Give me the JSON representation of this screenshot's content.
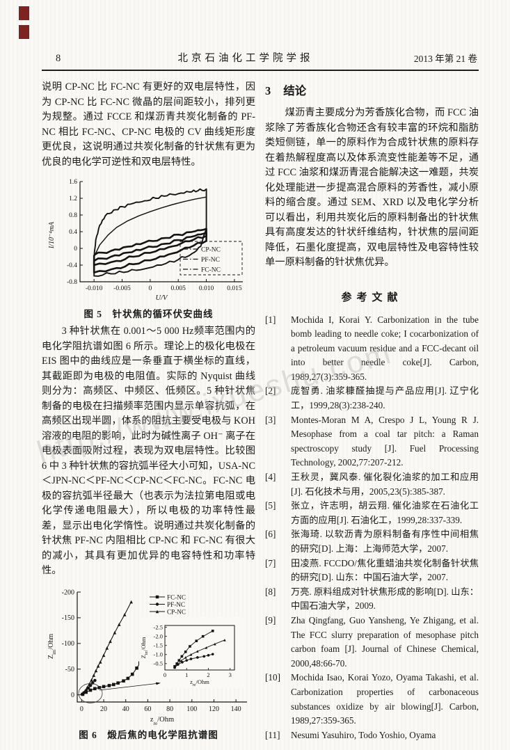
{
  "page": {
    "number": "8",
    "journal": "北京石油化工学院学报",
    "issue": "2013 年第 21 卷"
  },
  "watermark": {
    "text": "http://www.ixueshu.com"
  },
  "left_column": {
    "para1": "说明 CP-NC 比 FC-NC 有更好的双电层特性，因为 CP-NC 比 FC-NC 微晶的层间距较小，排列更为规整。通过 FCCE 和煤沥青共炭化制备的 PF-NC 相比 FC-NC、CP-NC 电极的 CV 曲线矩形度更优良，这说明通过共炭化制备的针状焦有更为优良的电化学可逆性和双电层特性。",
    "para2": "3 种针状焦在 0.001～5 000 Hz频率范围内的电化学阻抗谱如图 6 所示。理论上的极化电极在 EIS 图中的曲线应是一条垂直于横坐标的直线，其截距即为电极的电阻值。实际的 Nyquist 曲线则分为：高频区、中频区、低频区。5 种针状焦制备的电极在扫描频率范围内显示单容抗弧，在高频区出现半圆，体系的阻抗主要受电极与 KOH 溶液的电阻的影响，此时为碱性离子 OH⁻ 离子在电极表面吸附过程，表现为双电层特性。比较图 6 中 3 种针状焦的容抗弧半径大小可知，USA-NC＜JPN-NC＜PF-NC＜CP-NC＜FC-NC。FC-NC 电极的容抗弧半径最大（也表示为法拉第电阻或电化学传递电阻最大），所以电极的功率特性最差，显示出电化学惰性。说明通过共炭化制备的针状焦 PF-NC 内阻相比 CP-NC 和 FC-NC 有很大的减小，其具有更加优异的电容特性和功率特性。"
  },
  "right_column": {
    "section_no": "3",
    "section_title": "结论",
    "conclusion": "煤沥青主要成分为芳香族化合物，而 FCC 油浆除了芳香族化合物还含有较丰富的环烷和脂肪类短侧链，单一的原料作为合成针状焦的原料存在着热解程度高以及体系流变性能差等不足，通过 FCC 油浆和煤沥青混合能解决这一难题，共炭化处理能进一步提高混合原料的芳香性，减小原料的缩合度。通过 SEM、XRD 以及电化学分析可以看出，利用共炭化后的原料制备出的针状焦具有高度发达的针状纤维结构，针状焦的层间距降低，石墨化度提高，双电层特性及电容特性较单一原料制备的针状焦优异。",
    "references_title": "参考文献",
    "references": [
      {
        "no": "[1]",
        "text": "Mochida I, Korai Y. Carbonization in the tube bomb leading to needle coke; I cocarbonization of a petroleum vacuum residue and a FCC-decant oil into better needle coke[J]. Carbon, 1989,27(3):359-365."
      },
      {
        "no": "[2]",
        "text": "庞智勇. 油浆糠醛抽提与产品应用[J]. 辽宁化工，1999,28(3):238-240."
      },
      {
        "no": "[3]",
        "text": "Montes-Moran M A, Crespo J L, Young R J. Mesophase from a coal tar pitch: a Raman spectroscopy study [J]. Fuel Processing Technology, 2002,77:207-212."
      },
      {
        "no": "[4]",
        "text": "王秋灵，冀风泰. 催化裂化油浆的加工和应用[J]. 石化技术与用，2005,23(5):385-387."
      },
      {
        "no": "[5]",
        "text": "张立，许志明，胡云翔. 催化油浆在石油化工方面的应用[J]. 石油化工，1999,28:337-339."
      },
      {
        "no": "[6]",
        "text": "张海琦. 以软沥青为原料制备有序性中间相焦的研究[D]. 上海：上海师范大学，2007."
      },
      {
        "no": "[7]",
        "text": "田凌燕. FCCDO/焦化重蜡油共炭化制备针状焦的研究[D]. 山东：中国石油大学，2007."
      },
      {
        "no": "[8]",
        "text": "万亮. 原料组成对针状焦形成的影响[D]. 山东：中国石油大学，2009."
      },
      {
        "no": "[9]",
        "text": "Zha Qingfang, Guo Yansheng, Ye Zhigang, et al. The FCC slurry preparation of mesophase pitch carbon foam [J]. Journal of Chinese Chemical, 2000,48:66-70."
      },
      {
        "no": "[10]",
        "text": "Mochida Isao, Korai Yozo, Oyama Takashi, et al. Carbonization properties of carbonaceous substances oxidize by air blowing[J]. Carbon, 1989,27:359-365."
      },
      {
        "no": "[11]",
        "text": "Nesumi Yasuhiro, Todo Yoshio, Oyama"
      }
    ]
  },
  "chart_data": [
    {
      "id": "fig5",
      "type": "line",
      "title": "图 5　针状焦的循环伏安曲线",
      "xlabel": "U/V",
      "ylabel": "I/10⁻⁴mA",
      "xleft": -0.0125,
      "xright": 0.0165,
      "ytop": 1.6,
      "ybottom": -0.8,
      "xticks": [
        -0.01,
        -0.005,
        0,
        0.005,
        0.01,
        0.015
      ],
      "xtick_labels": [
        "-0.010",
        "-0.005",
        "0",
        "0.005",
        "0.010",
        "0.015"
      ],
      "yticks": [
        1.6,
        1.2,
        0.8,
        0.4,
        0,
        -0.4,
        -0.8
      ],
      "ytick_labels": [
        "1.6",
        "1.2",
        "0.8",
        "0.4",
        "0",
        "-0.4",
        "-0.8"
      ],
      "legend": [
        "CP-NC",
        "PF-NC",
        "FC-NC"
      ],
      "series": [
        {
          "name": "PF-NC",
          "noisy": true,
          "width": 1.9,
          "points": [
            [
              -0.01,
              -0.22
            ],
            [
              -0.0097,
              0.2
            ],
            [
              -0.009,
              0.55
            ],
            [
              -0.008,
              0.78
            ],
            [
              -0.0065,
              0.92
            ],
            [
              -0.005,
              1.0
            ],
            [
              -0.003,
              1.08
            ],
            [
              -0.001,
              1.14
            ],
            [
              0.001,
              1.2
            ],
            [
              0.003,
              1.26
            ],
            [
              0.005,
              1.31
            ],
            [
              0.007,
              1.35
            ],
            [
              0.0085,
              1.38
            ],
            [
              0.01,
              1.42
            ],
            [
              0.01,
              0.5
            ],
            [
              0.009,
              0.05
            ],
            [
              0.0075,
              -0.12
            ],
            [
              0.005,
              -0.27
            ],
            [
              0.002,
              -0.4
            ],
            [
              -0.001,
              -0.49
            ],
            [
              -0.004,
              -0.56
            ],
            [
              -0.007,
              -0.61
            ],
            [
              -0.01,
              -0.66
            ],
            [
              -0.01,
              -0.22
            ]
          ]
        },
        {
          "name": "PF-NC-smooth",
          "noisy": false,
          "width": 1.5,
          "points": [
            [
              -0.01,
              -0.2
            ],
            [
              -0.009,
              0.08
            ],
            [
              -0.0075,
              0.32
            ],
            [
              -0.006,
              0.5
            ],
            [
              -0.004,
              0.66
            ],
            [
              -0.002,
              0.78
            ],
            [
              0,
              0.88
            ],
            [
              0.002,
              0.97
            ],
            [
              0.004,
              1.05
            ],
            [
              0.006,
              1.12
            ],
            [
              0.008,
              1.18
            ],
            [
              0.01,
              1.23
            ]
          ]
        },
        {
          "name": "CP-NC",
          "noisy": true,
          "width": 2.6,
          "points": [
            [
              -0.01,
              -0.16
            ],
            [
              -0.007,
              -0.06
            ],
            [
              -0.004,
              0.04
            ],
            [
              -0.001,
              0.14
            ],
            [
              0.002,
              0.24
            ],
            [
              0.005,
              0.33
            ],
            [
              0.008,
              0.41
            ],
            [
              0.01,
              0.47
            ],
            [
              0.01,
              0.3
            ],
            [
              0.007,
              0.17
            ],
            [
              0.004,
              0.05
            ],
            [
              0.001,
              -0.07
            ],
            [
              -0.003,
              -0.2
            ],
            [
              -0.006,
              -0.3
            ],
            [
              -0.01,
              -0.4
            ],
            [
              -0.01,
              -0.16
            ]
          ]
        },
        {
          "name": "FC-NC",
          "noisy": true,
          "width": 2.6,
          "points": [
            [
              -0.01,
              -0.3
            ],
            [
              -0.007,
              -0.2
            ],
            [
              -0.004,
              -0.1
            ],
            [
              -0.001,
              0.0
            ],
            [
              0.002,
              0.1
            ],
            [
              0.005,
              0.2
            ],
            [
              0.008,
              0.3
            ],
            [
              0.01,
              0.38
            ],
            [
              0.01,
              0.18
            ],
            [
              0.007,
              0.02
            ],
            [
              0.004,
              -0.12
            ],
            [
              0.001,
              -0.25
            ],
            [
              -0.003,
              -0.38
            ],
            [
              -0.006,
              -0.47
            ],
            [
              -0.01,
              -0.58
            ],
            [
              -0.01,
              -0.3
            ]
          ]
        }
      ]
    },
    {
      "id": "fig6",
      "type": "scatter",
      "title": "图 6　煅后焦的电化学阻抗谱图",
      "xlabel": "z_{re}/Ohm",
      "ylabel": "Z_{im}/Ohm",
      "xleft": -4,
      "xright": 150,
      "ytop": -200,
      "ybottom": 14,
      "xticks": [
        0,
        20,
        40,
        60,
        80,
        100,
        120,
        140
      ],
      "xtick_labels": [
        "0",
        "20",
        "40",
        "60",
        "80",
        "100",
        "120",
        "140"
      ],
      "yticks": [
        -200,
        -150,
        -100,
        -50,
        0
      ],
      "ytick_labels": [
        "-200",
        "-150",
        "-100",
        "-50",
        "0"
      ],
      "legend": [
        {
          "name": "FC-NC",
          "marker": "square"
        },
        {
          "name": "PF-NC",
          "marker": "circle"
        },
        {
          "name": "CP-NC",
          "marker": "triangle"
        }
      ],
      "series": [
        {
          "name": "CP-NC",
          "marker": "triangle",
          "points": [
            [
              1,
              -2
            ],
            [
              3,
              -7
            ],
            [
              5,
              -14
            ],
            [
              7,
              -21
            ],
            [
              9,
              -29
            ],
            [
              11,
              -38
            ],
            [
              13,
              -47
            ],
            [
              15,
              -56
            ],
            [
              17,
              -64
            ],
            [
              20,
              -77
            ],
            [
              23,
              -91
            ],
            [
              26,
              -104
            ],
            [
              30,
              -121
            ],
            [
              34,
              -137
            ],
            [
              39,
              -156
            ],
            [
              45,
              -181
            ]
          ]
        },
        {
          "name": "FC-NC",
          "marker": "square",
          "points": [
            [
              1,
              -1
            ],
            [
              4,
              -5
            ],
            [
              8,
              -9
            ],
            [
              12,
              -12
            ],
            [
              16,
              -14
            ],
            [
              20,
              -16
            ],
            [
              25,
              -18
            ],
            [
              29,
              -20
            ],
            [
              33,
              -23
            ],
            [
              38,
              -27
            ],
            [
              42,
              -32
            ],
            [
              46,
              -40
            ],
            [
              50,
              -52
            ],
            [
              53,
              -62
            ],
            [
              55,
              -70
            ]
          ]
        },
        {
          "name": "PF-NC",
          "marker": "circle",
          "points": [
            [
              0.5,
              -1
            ],
            [
              2,
              -4
            ],
            [
              4,
              -8
            ],
            [
              6,
              -13
            ],
            [
              8,
              -18
            ],
            [
              10,
              -23
            ],
            [
              12,
              -28
            ]
          ]
        }
      ],
      "inset": {
        "xleft": 0,
        "xright": 3.2,
        "ytop": -2.6,
        "ybottom": -0.15,
        "xticks": [
          0,
          1,
          2,
          3
        ],
        "xtick_labels": [
          "0",
          "1",
          "2",
          "3"
        ],
        "yticks": [
          -2.5,
          -2.0,
          -1.5,
          -1.0,
          -0.5
        ],
        "ytick_labels": [
          "-2.5",
          "-2.0",
          "-1.5",
          "-1.0",
          "-0.5"
        ],
        "xlabel": "z_{re}/Ohm",
        "ylabel": "Z_{im}/Ohm",
        "series": [
          {
            "name": "FC-NC",
            "marker": "square",
            "points": [
              [
                0.45,
                -0.35
              ],
              [
                0.55,
                -0.5
              ],
              [
                0.65,
                -0.68
              ],
              [
                0.78,
                -0.9
              ],
              [
                0.95,
                -1.15
              ],
              [
                1.15,
                -1.45
              ],
              [
                1.45,
                -1.75
              ],
              [
                1.75,
                -2.0
              ],
              [
                2.2,
                -2.3
              ]
            ]
          },
          {
            "name": "CP-NC",
            "marker": "triangle",
            "points": [
              [
                0.45,
                -0.3
              ],
              [
                0.6,
                -0.48
              ],
              [
                0.75,
                -0.66
              ],
              [
                0.95,
                -0.84
              ],
              [
                1.2,
                -1.0
              ],
              [
                1.5,
                -1.18
              ],
              [
                1.9,
                -1.38
              ],
              [
                2.3,
                -1.58
              ],
              [
                2.75,
                -1.8
              ]
            ]
          },
          {
            "name": "PF-NC",
            "marker": "circle",
            "points": [
              [
                0.45,
                -0.28
              ],
              [
                0.6,
                -0.45
              ],
              [
                0.8,
                -0.58
              ],
              [
                1.0,
                -0.68
              ],
              [
                1.2,
                -0.76
              ],
              [
                1.5,
                -0.84
              ],
              [
                1.8,
                -0.9
              ],
              [
                2.0,
                -0.96
              ],
              [
                2.2,
                -1.02
              ]
            ]
          }
        ]
      }
    }
  ]
}
